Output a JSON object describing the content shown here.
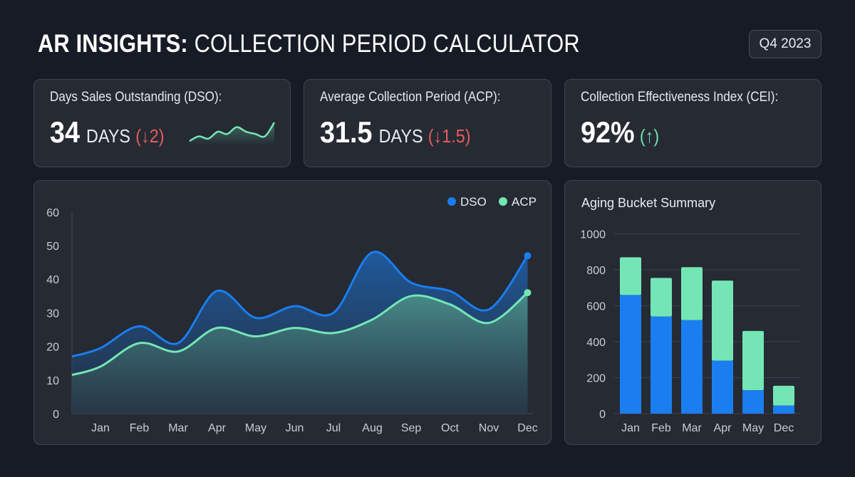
{
  "header": {
    "title_bold": "AR INSIGHTS:",
    "title_rest": " COLLECTION PERIOD CALCULATOR",
    "period": "Q4 2023"
  },
  "kpis": [
    {
      "label": "Days Sales Outstanding (DSO):",
      "value": "34",
      "unit": "DAYS",
      "delta": "(↓2)",
      "direction": "down",
      "sparkline": [
        4,
        6,
        5,
        8,
        7,
        10,
        8,
        7,
        6,
        12
      ]
    },
    {
      "label": "Average Collection Period (ACP):",
      "value": "31.5",
      "unit": "DAYS",
      "delta": "(↓1.5)",
      "direction": "down"
    },
    {
      "label": "Collection Effectiveness Index (CEI):",
      "value": "92%",
      "delta": "(↑)",
      "direction": "up"
    }
  ],
  "colors": {
    "dso": "#1a7ef0",
    "acp": "#74e6b6",
    "down": "#e35d5d",
    "up": "#6fe0b0"
  },
  "chart_data": [
    {
      "type": "area",
      "categories": [
        "Jan",
        "Feb",
        "Mar",
        "Apr",
        "May",
        "Jun",
        "Jul",
        "Aug",
        "Sep",
        "Oct",
        "Nov",
        "Dec"
      ],
      "series": [
        {
          "name": "DSO",
          "values": [
            19.5,
            26,
            21,
            36.5,
            28.5,
            32,
            30,
            48,
            39,
            36.5,
            31,
            47
          ]
        },
        {
          "name": "ACP",
          "values": [
            14,
            21,
            18.5,
            25.5,
            23,
            25.5,
            24,
            28,
            35,
            32.5,
            27,
            36
          ]
        }
      ],
      "ylim": [
        0,
        60
      ],
      "yticks": [
        0,
        10,
        20,
        30,
        40,
        50,
        60
      ],
      "legend": "top-right",
      "grid": false
    },
    {
      "type": "bar",
      "stacked": true,
      "title": "Aging Bucket Summary",
      "categories": [
        "Jan",
        "Feb",
        "Mar",
        "Apr",
        "May",
        "Dec"
      ],
      "series": [
        {
          "values": [
            660,
            540,
            520,
            295,
            130,
            45
          ]
        },
        {
          "values": [
            210,
            215,
            295,
            445,
            330,
            110
          ]
        }
      ],
      "ylim": [
        0,
        1000
      ],
      "yticks": [
        0,
        200,
        400,
        600,
        800,
        1000
      ],
      "grid": true
    }
  ]
}
